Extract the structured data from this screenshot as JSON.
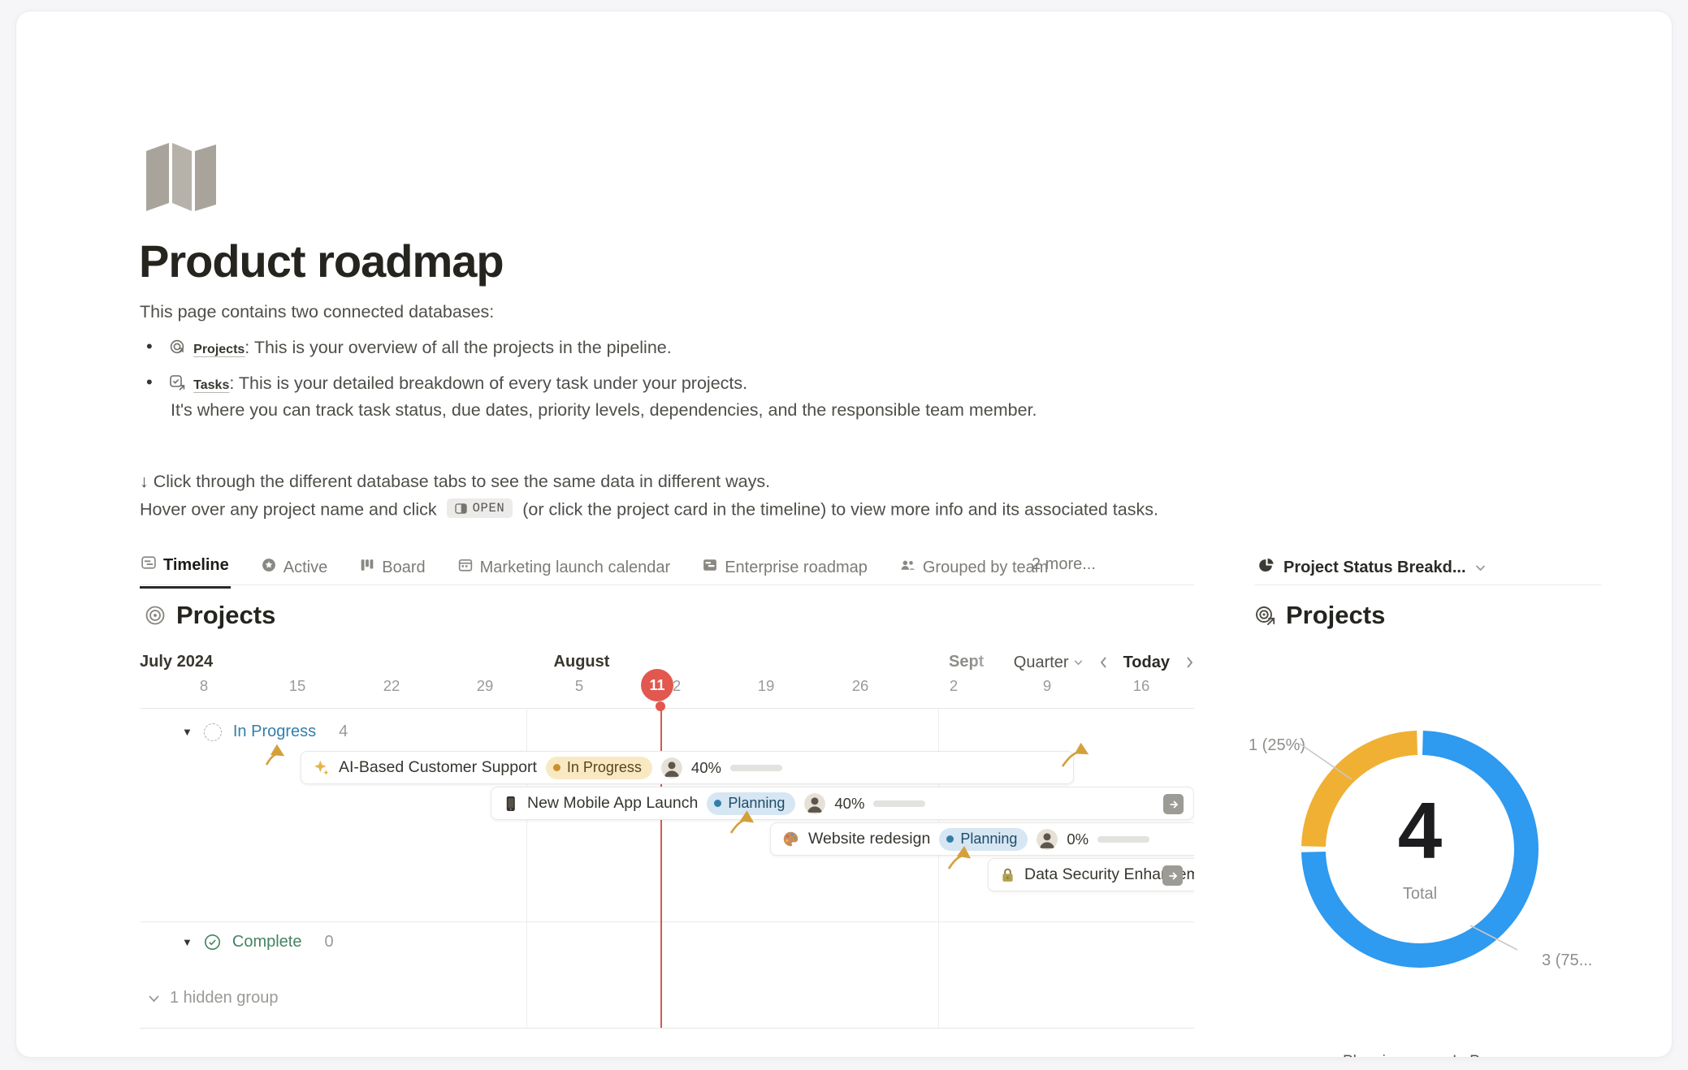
{
  "page": {
    "icon": "map-icon",
    "title": "Product roadmap",
    "intro": "This page contains two connected databases:",
    "bullets": [
      {
        "icon": "projects-link-icon",
        "link": "Projects",
        "rest": ": This is your overview of all the projects in the pipeline."
      },
      {
        "icon": "tasks-link-icon",
        "link": "Tasks",
        "rest": ": This is your detailed breakdown of every task under your projects.",
        "line2": "It's where you can track task status, due dates, priority levels, dependencies, and the responsible team member."
      }
    ],
    "hint1": "↓ Click through the different database tabs to see the same data in different ways.",
    "hint2_pre": "Hover over any project name and click",
    "open_label": "OPEN",
    "hint2_post": "(or click the project card in the timeline) to view more info and its associated tasks."
  },
  "tabs": [
    {
      "label": "Timeline",
      "icon": "timeline-icon",
      "active": true
    },
    {
      "label": "Active",
      "icon": "star-icon",
      "active": false
    },
    {
      "label": "Board",
      "icon": "board-icon",
      "active": false
    },
    {
      "label": "Marketing launch calendar",
      "icon": "calendar-icon",
      "active": false
    },
    {
      "label": "Enterprise roadmap",
      "icon": "roadmap-icon",
      "active": false
    },
    {
      "label": "Grouped by team",
      "icon": "team-icon",
      "active": false
    }
  ],
  "tabs_more": "2 more...",
  "right_view": {
    "icon": "pie-chart-icon",
    "label": "Project Status Breakd..."
  },
  "timeline": {
    "heading": "Projects",
    "months": [
      "July 2024",
      "August",
      "Sept"
    ],
    "zoom_label": "Quarter",
    "today_label": "Today",
    "dates": [
      "8",
      "15",
      "22",
      "29",
      "5",
      "12",
      "19",
      "26",
      "2",
      "9",
      "16"
    ],
    "today_date": "11",
    "groups": [
      {
        "name": "In Progress",
        "count": "4",
        "color": "#337ea9",
        "icon": "dashed-circle-icon"
      },
      {
        "name": "Complete",
        "count": "0",
        "color": "#448361",
        "icon": "check-circle-icon"
      }
    ],
    "hidden_label": "1 hidden group",
    "cards": [
      {
        "icon": "sparkles-icon",
        "title": "AI-Based Customer Support",
        "status": "In Progress",
        "status_type": "yellow",
        "pct": "40%",
        "progress": 40
      },
      {
        "icon": "mobile-icon",
        "title": "New Mobile App Launch",
        "status": "Planning",
        "status_type": "blue",
        "pct": "40%",
        "progress": 40,
        "arrow": true
      },
      {
        "icon": "palette-icon",
        "title": "Website redesign",
        "status": "Planning",
        "status_type": "blue",
        "pct": "0%",
        "progress": 0
      },
      {
        "icon": "lock-icon",
        "title": "Data Security Enhancement",
        "arrow": true,
        "truncated": true
      }
    ]
  },
  "chart": {
    "heading": "Projects"
  },
  "chart_data": {
    "type": "pie",
    "title": "Project Status Breakdown",
    "categories": [
      "Planning",
      "In Progress"
    ],
    "values": [
      3,
      1
    ],
    "colors": [
      "#2e9af0",
      "#f0b033"
    ],
    "slice_labels": [
      "3 (75...",
      "1 (25%)"
    ],
    "center_value": "4",
    "center_label": "Total",
    "legend_position": "bottom"
  }
}
